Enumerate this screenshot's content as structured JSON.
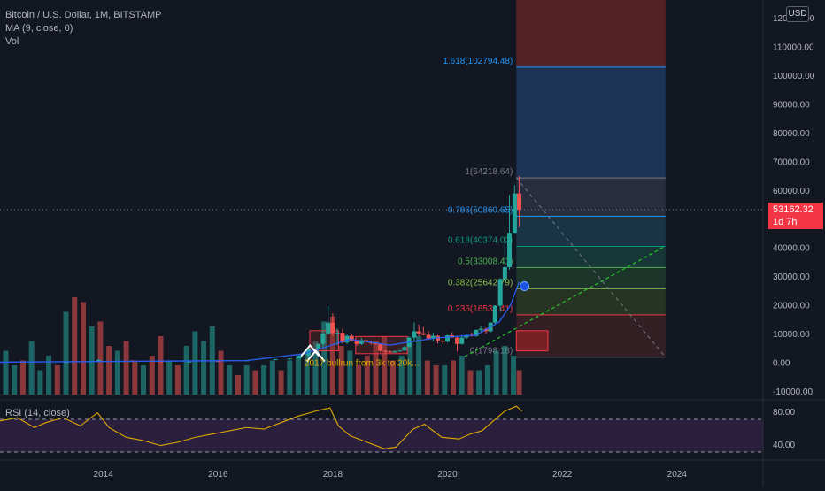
{
  "header": {
    "symbol_line": "Bitcoin / U.S. Dollar, 1M, BITSTAMP",
    "ma_line": "MA (9, close, 0)",
    "vol_line": "Vol",
    "currency_badge": "USD"
  },
  "rsi_panel": {
    "label": "RSI (14, close)"
  },
  "price_tag": {
    "price": "53162.32",
    "countdown": "1d 7h"
  },
  "colors": {
    "background": "#131722",
    "up": "#26a69a",
    "down": "#ef5350",
    "ma_line": "#2962ff",
    "rsi_line": "#e0a800",
    "rsi_band": "#2a1f3d",
    "annotation_text": "#e0a800",
    "trend_line": "#26c62a"
  },
  "chart_data": {
    "type": "candlestick",
    "y_axis": {
      "labels": [
        "120000.00",
        "110000.00",
        "100000.00",
        "90000.00",
        "80000.00",
        "70000.00",
        "60000.00",
        "50000.00",
        "40000.00",
        "30000.00",
        "20000.00",
        "10000.00",
        "0.00",
        "-10000.00"
      ],
      "range": [
        -10000,
        123000
      ]
    },
    "x_axis": {
      "labels": [
        "2014",
        "2016",
        "2018",
        "2020",
        "2022",
        "2024"
      ],
      "range": [
        2012.2,
        2025.5
      ]
    },
    "fib_levels": [
      {
        "ratio": 1.618,
        "label": "1.618(102794.48)",
        "value": 102794.48,
        "color": "#2196f3"
      },
      {
        "ratio": 1,
        "label": "1(64218.64)",
        "value": 64218.64,
        "color": "#787b86"
      },
      {
        "ratio": 0.786,
        "label": "0.786(50860.65)",
        "value": 50860.65,
        "color": "#2196f3"
      },
      {
        "ratio": 0.618,
        "label": "0.618(40374.02)",
        "value": 40374.02,
        "color": "#089981"
      },
      {
        "ratio": 0.5,
        "label": "0.5(33008.41)",
        "value": 33008.41,
        "color": "#4caf50"
      },
      {
        "ratio": 0.382,
        "label": "0.382(25642.79)",
        "value": 25642.79,
        "color": "#8bc34a"
      },
      {
        "ratio": 0.236,
        "label": "0.236(16531.41)",
        "value": 16531.41,
        "color": "#f23645"
      },
      {
        "ratio": 0,
        "label": "0(1798.18)",
        "value": 1798.18,
        "color": "#787b86"
      }
    ],
    "fib_x_range": [
      2021.2,
      2023.8
    ],
    "candles": [
      {
        "t": 2013.35,
        "o": 120,
        "h": 140,
        "l": 80,
        "c": 130
      },
      {
        "t": 2013.92,
        "o": 200,
        "h": 1200,
        "l": 150,
        "c": 800
      },
      {
        "t": 2014.5,
        "o": 600,
        "h": 700,
        "l": 500,
        "c": 580
      },
      {
        "t": 2015.0,
        "o": 320,
        "h": 350,
        "l": 170,
        "c": 220
      },
      {
        "t": 2015.5,
        "o": 240,
        "h": 300,
        "l": 220,
        "c": 260
      },
      {
        "t": 2016.0,
        "o": 430,
        "h": 470,
        "l": 360,
        "c": 380
      },
      {
        "t": 2016.5,
        "o": 450,
        "h": 780,
        "l": 440,
        "c": 680
      },
      {
        "t": 2017.0,
        "o": 960,
        "h": 1200,
        "l": 760,
        "c": 1100
      },
      {
        "t": 2017.25,
        "o": 1080,
        "h": 1350,
        "l": 900,
        "c": 1300
      },
      {
        "t": 2017.42,
        "o": 1350,
        "h": 2800,
        "l": 1300,
        "c": 2300
      },
      {
        "t": 2017.58,
        "o": 2400,
        "h": 4700,
        "l": 2000,
        "c": 4700
      },
      {
        "t": 2017.75,
        "o": 4700,
        "h": 6500,
        "l": 3000,
        "c": 6400
      },
      {
        "t": 2017.83,
        "o": 6400,
        "h": 11000,
        "l": 5500,
        "c": 10000
      },
      {
        "t": 2017.92,
        "o": 10000,
        "h": 19700,
        "l": 9500,
        "c": 13800
      },
      {
        "t": 2018.0,
        "o": 13800,
        "h": 17000,
        "l": 9200,
        "c": 10200
      },
      {
        "t": 2018.08,
        "o": 10200,
        "h": 11800,
        "l": 6000,
        "c": 10300
      },
      {
        "t": 2018.17,
        "o": 10300,
        "h": 11700,
        "l": 6500,
        "c": 6900
      },
      {
        "t": 2018.25,
        "o": 6900,
        "h": 9800,
        "l": 6400,
        "c": 9200
      },
      {
        "t": 2018.33,
        "o": 9200,
        "h": 10000,
        "l": 7200,
        "c": 7500
      },
      {
        "t": 2018.42,
        "o": 7500,
        "h": 7800,
        "l": 5800,
        "c": 6400
      },
      {
        "t": 2018.5,
        "o": 6400,
        "h": 8500,
        "l": 6000,
        "c": 7700
      },
      {
        "t": 2018.58,
        "o": 7700,
        "h": 7800,
        "l": 5900,
        "c": 7000
      },
      {
        "t": 2018.67,
        "o": 7000,
        "h": 7400,
        "l": 6100,
        "c": 6600
      },
      {
        "t": 2018.75,
        "o": 6600,
        "h": 6800,
        "l": 6200,
        "c": 6300
      },
      {
        "t": 2018.83,
        "o": 6300,
        "h": 6500,
        "l": 3500,
        "c": 4000
      },
      {
        "t": 2018.92,
        "o": 4000,
        "h": 4300,
        "l": 3100,
        "c": 3700
      },
      {
        "t": 2019.0,
        "o": 3700,
        "h": 4100,
        "l": 3300,
        "c": 3400
      },
      {
        "t": 2019.08,
        "o": 3400,
        "h": 4200,
        "l": 3400,
        "c": 3800
      },
      {
        "t": 2019.17,
        "o": 3800,
        "h": 4100,
        "l": 3700,
        "c": 4100
      },
      {
        "t": 2019.25,
        "o": 4100,
        "h": 5600,
        "l": 4100,
        "c": 5300
      },
      {
        "t": 2019.33,
        "o": 5300,
        "h": 9000,
        "l": 5300,
        "c": 8600
      },
      {
        "t": 2019.42,
        "o": 8600,
        "h": 13900,
        "l": 7500,
        "c": 10800
      },
      {
        "t": 2019.5,
        "o": 10800,
        "h": 13200,
        "l": 9100,
        "c": 10100
      },
      {
        "t": 2019.58,
        "o": 10100,
        "h": 12300,
        "l": 9300,
        "c": 9600
      },
      {
        "t": 2019.67,
        "o": 9600,
        "h": 10900,
        "l": 7700,
        "c": 8300
      },
      {
        "t": 2019.75,
        "o": 8300,
        "h": 10400,
        "l": 7300,
        "c": 9200
      },
      {
        "t": 2019.83,
        "o": 9200,
        "h": 9500,
        "l": 6500,
        "c": 7500
      },
      {
        "t": 2019.92,
        "o": 7500,
        "h": 7700,
        "l": 6400,
        "c": 7200
      },
      {
        "t": 2020.0,
        "o": 7200,
        "h": 9600,
        "l": 6900,
        "c": 9400
      },
      {
        "t": 2020.08,
        "o": 9400,
        "h": 10500,
        "l": 8500,
        "c": 8600
      },
      {
        "t": 2020.17,
        "o": 8600,
        "h": 9200,
        "l": 3800,
        "c": 6400
      },
      {
        "t": 2020.25,
        "o": 6400,
        "h": 9500,
        "l": 6200,
        "c": 8600
      },
      {
        "t": 2020.33,
        "o": 8600,
        "h": 10000,
        "l": 8100,
        "c": 9500
      },
      {
        "t": 2020.42,
        "o": 9500,
        "h": 10400,
        "l": 8900,
        "c": 9150
      },
      {
        "t": 2020.5,
        "o": 9150,
        "h": 11400,
        "l": 8900,
        "c": 11300
      },
      {
        "t": 2020.58,
        "o": 11300,
        "h": 12500,
        "l": 10600,
        "c": 11650
      },
      {
        "t": 2020.67,
        "o": 11650,
        "h": 12100,
        "l": 9900,
        "c": 10800
      },
      {
        "t": 2020.75,
        "o": 10800,
        "h": 14000,
        "l": 10400,
        "c": 13800
      },
      {
        "t": 2020.83,
        "o": 13800,
        "h": 19800,
        "l": 13200,
        "c": 19700
      },
      {
        "t": 2020.92,
        "o": 19700,
        "h": 29300,
        "l": 17600,
        "c": 29000
      },
      {
        "t": 2021.0,
        "o": 29000,
        "h": 41900,
        "l": 28100,
        "c": 33100
      },
      {
        "t": 2021.08,
        "o": 33100,
        "h": 58300,
        "l": 32300,
        "c": 45100
      },
      {
        "t": 2021.17,
        "o": 45100,
        "h": 61700,
        "l": 45000,
        "c": 58800
      },
      {
        "t": 2021.25,
        "o": 58800,
        "h": 64900,
        "l": 47000,
        "c": 53162.32
      }
    ],
    "volume_bars": [
      {
        "t": 2012.3,
        "v": 0.45,
        "up": true
      },
      {
        "t": 2012.45,
        "v": 0.3,
        "up": true
      },
      {
        "t": 2012.6,
        "v": 0.35,
        "up": false
      },
      {
        "t": 2012.75,
        "v": 0.55,
        "up": true
      },
      {
        "t": 2012.9,
        "v": 0.25,
        "up": true
      },
      {
        "t": 2013.05,
        "v": 0.4,
        "up": true
      },
      {
        "t": 2013.2,
        "v": 0.3,
        "up": false
      },
      {
        "t": 2013.35,
        "v": 0.85,
        "up": true
      },
      {
        "t": 2013.5,
        "v": 1.0,
        "up": false
      },
      {
        "t": 2013.65,
        "v": 0.95,
        "up": false
      },
      {
        "t": 2013.8,
        "v": 0.7,
        "up": true
      },
      {
        "t": 2013.95,
        "v": 0.75,
        "up": false
      },
      {
        "t": 2014.1,
        "v": 0.5,
        "up": false
      },
      {
        "t": 2014.25,
        "v": 0.45,
        "up": true
      },
      {
        "t": 2014.4,
        "v": 0.55,
        "up": false
      },
      {
        "t": 2014.55,
        "v": 0.35,
        "up": false
      },
      {
        "t": 2014.7,
        "v": 0.3,
        "up": true
      },
      {
        "t": 2014.85,
        "v": 0.4,
        "up": false
      },
      {
        "t": 2015.0,
        "v": 0.6,
        "up": false
      },
      {
        "t": 2015.15,
        "v": 0.35,
        "up": true
      },
      {
        "t": 2015.3,
        "v": 0.3,
        "up": false
      },
      {
        "t": 2015.45,
        "v": 0.5,
        "up": true
      },
      {
        "t": 2015.6,
        "v": 0.65,
        "up": true
      },
      {
        "t": 2015.75,
        "v": 0.55,
        "up": true
      },
      {
        "t": 2015.9,
        "v": 0.7,
        "up": true
      },
      {
        "t": 2016.05,
        "v": 0.45,
        "up": false
      },
      {
        "t": 2016.2,
        "v": 0.3,
        "up": true
      },
      {
        "t": 2016.35,
        "v": 0.2,
        "up": false
      },
      {
        "t": 2016.5,
        "v": 0.3,
        "up": true
      },
      {
        "t": 2016.65,
        "v": 0.25,
        "up": false
      },
      {
        "t": 2016.8,
        "v": 0.3,
        "up": true
      },
      {
        "t": 2016.95,
        "v": 0.35,
        "up": true
      },
      {
        "t": 2017.1,
        "v": 0.25,
        "up": false
      },
      {
        "t": 2017.25,
        "v": 0.35,
        "up": true
      },
      {
        "t": 2017.4,
        "v": 0.4,
        "up": true
      },
      {
        "t": 2017.55,
        "v": 0.45,
        "up": true
      },
      {
        "t": 2017.7,
        "v": 0.55,
        "up": true
      },
      {
        "t": 2017.85,
        "v": 0.75,
        "up": true
      },
      {
        "t": 2018.0,
        "v": 0.8,
        "up": false
      },
      {
        "t": 2018.15,
        "v": 0.5,
        "up": false
      },
      {
        "t": 2018.3,
        "v": 0.45,
        "up": true
      },
      {
        "t": 2018.45,
        "v": 0.3,
        "up": false
      },
      {
        "t": 2018.6,
        "v": 0.4,
        "up": false
      },
      {
        "t": 2018.75,
        "v": 0.55,
        "up": false
      },
      {
        "t": 2018.9,
        "v": 0.6,
        "up": false
      },
      {
        "t": 2019.05,
        "v": 0.35,
        "up": false
      },
      {
        "t": 2019.2,
        "v": 0.4,
        "up": true
      },
      {
        "t": 2019.35,
        "v": 0.55,
        "up": true
      },
      {
        "t": 2019.5,
        "v": 0.6,
        "up": true
      },
      {
        "t": 2019.65,
        "v": 0.35,
        "up": false
      },
      {
        "t": 2019.8,
        "v": 0.3,
        "up": false
      },
      {
        "t": 2019.95,
        "v": 0.3,
        "up": true
      },
      {
        "t": 2020.1,
        "v": 0.35,
        "up": false
      },
      {
        "t": 2020.25,
        "v": 0.4,
        "up": true
      },
      {
        "t": 2020.4,
        "v": 0.25,
        "up": false
      },
      {
        "t": 2020.55,
        "v": 0.25,
        "up": true
      },
      {
        "t": 2020.7,
        "v": 0.3,
        "up": true
      },
      {
        "t": 2020.85,
        "v": 0.45,
        "up": true
      },
      {
        "t": 2021.0,
        "v": 0.5,
        "up": true
      },
      {
        "t": 2021.15,
        "v": 0.4,
        "up": true
      },
      {
        "t": 2021.25,
        "v": 0.25,
        "up": false
      }
    ],
    "rsi": {
      "labels": [
        "80.00",
        "40.00"
      ],
      "upper_band": 70,
      "lower_band": 30,
      "points": [
        [
          2012.2,
          68
        ],
        [
          2012.5,
          72
        ],
        [
          2012.8,
          60
        ],
        [
          2013.0,
          66
        ],
        [
          2013.3,
          72
        ],
        [
          2013.6,
          62
        ],
        [
          2013.9,
          78
        ],
        [
          2014.1,
          60
        ],
        [
          2014.4,
          48
        ],
        [
          2014.7,
          44
        ],
        [
          2015.0,
          38
        ],
        [
          2015.3,
          42
        ],
        [
          2015.6,
          48
        ],
        [
          2015.9,
          52
        ],
        [
          2016.2,
          56
        ],
        [
          2016.5,
          60
        ],
        [
          2016.8,
          58
        ],
        [
          2017.1,
          66
        ],
        [
          2017.4,
          74
        ],
        [
          2017.7,
          80
        ],
        [
          2017.95,
          84
        ],
        [
          2018.1,
          62
        ],
        [
          2018.3,
          50
        ],
        [
          2018.6,
          42
        ],
        [
          2018.9,
          34
        ],
        [
          2019.1,
          36
        ],
        [
          2019.4,
          58
        ],
        [
          2019.6,
          64
        ],
        [
          2019.9,
          48
        ],
        [
          2020.2,
          46
        ],
        [
          2020.4,
          52
        ],
        [
          2020.6,
          56
        ],
        [
          2020.8,
          68
        ],
        [
          2021.0,
          80
        ],
        [
          2021.2,
          86
        ],
        [
          2021.3,
          80
        ]
      ]
    },
    "annotations": [
      {
        "text": "2017 bullrun from 3k to 20k...",
        "t": 2017.6,
        "v": -1200
      }
    ]
  }
}
